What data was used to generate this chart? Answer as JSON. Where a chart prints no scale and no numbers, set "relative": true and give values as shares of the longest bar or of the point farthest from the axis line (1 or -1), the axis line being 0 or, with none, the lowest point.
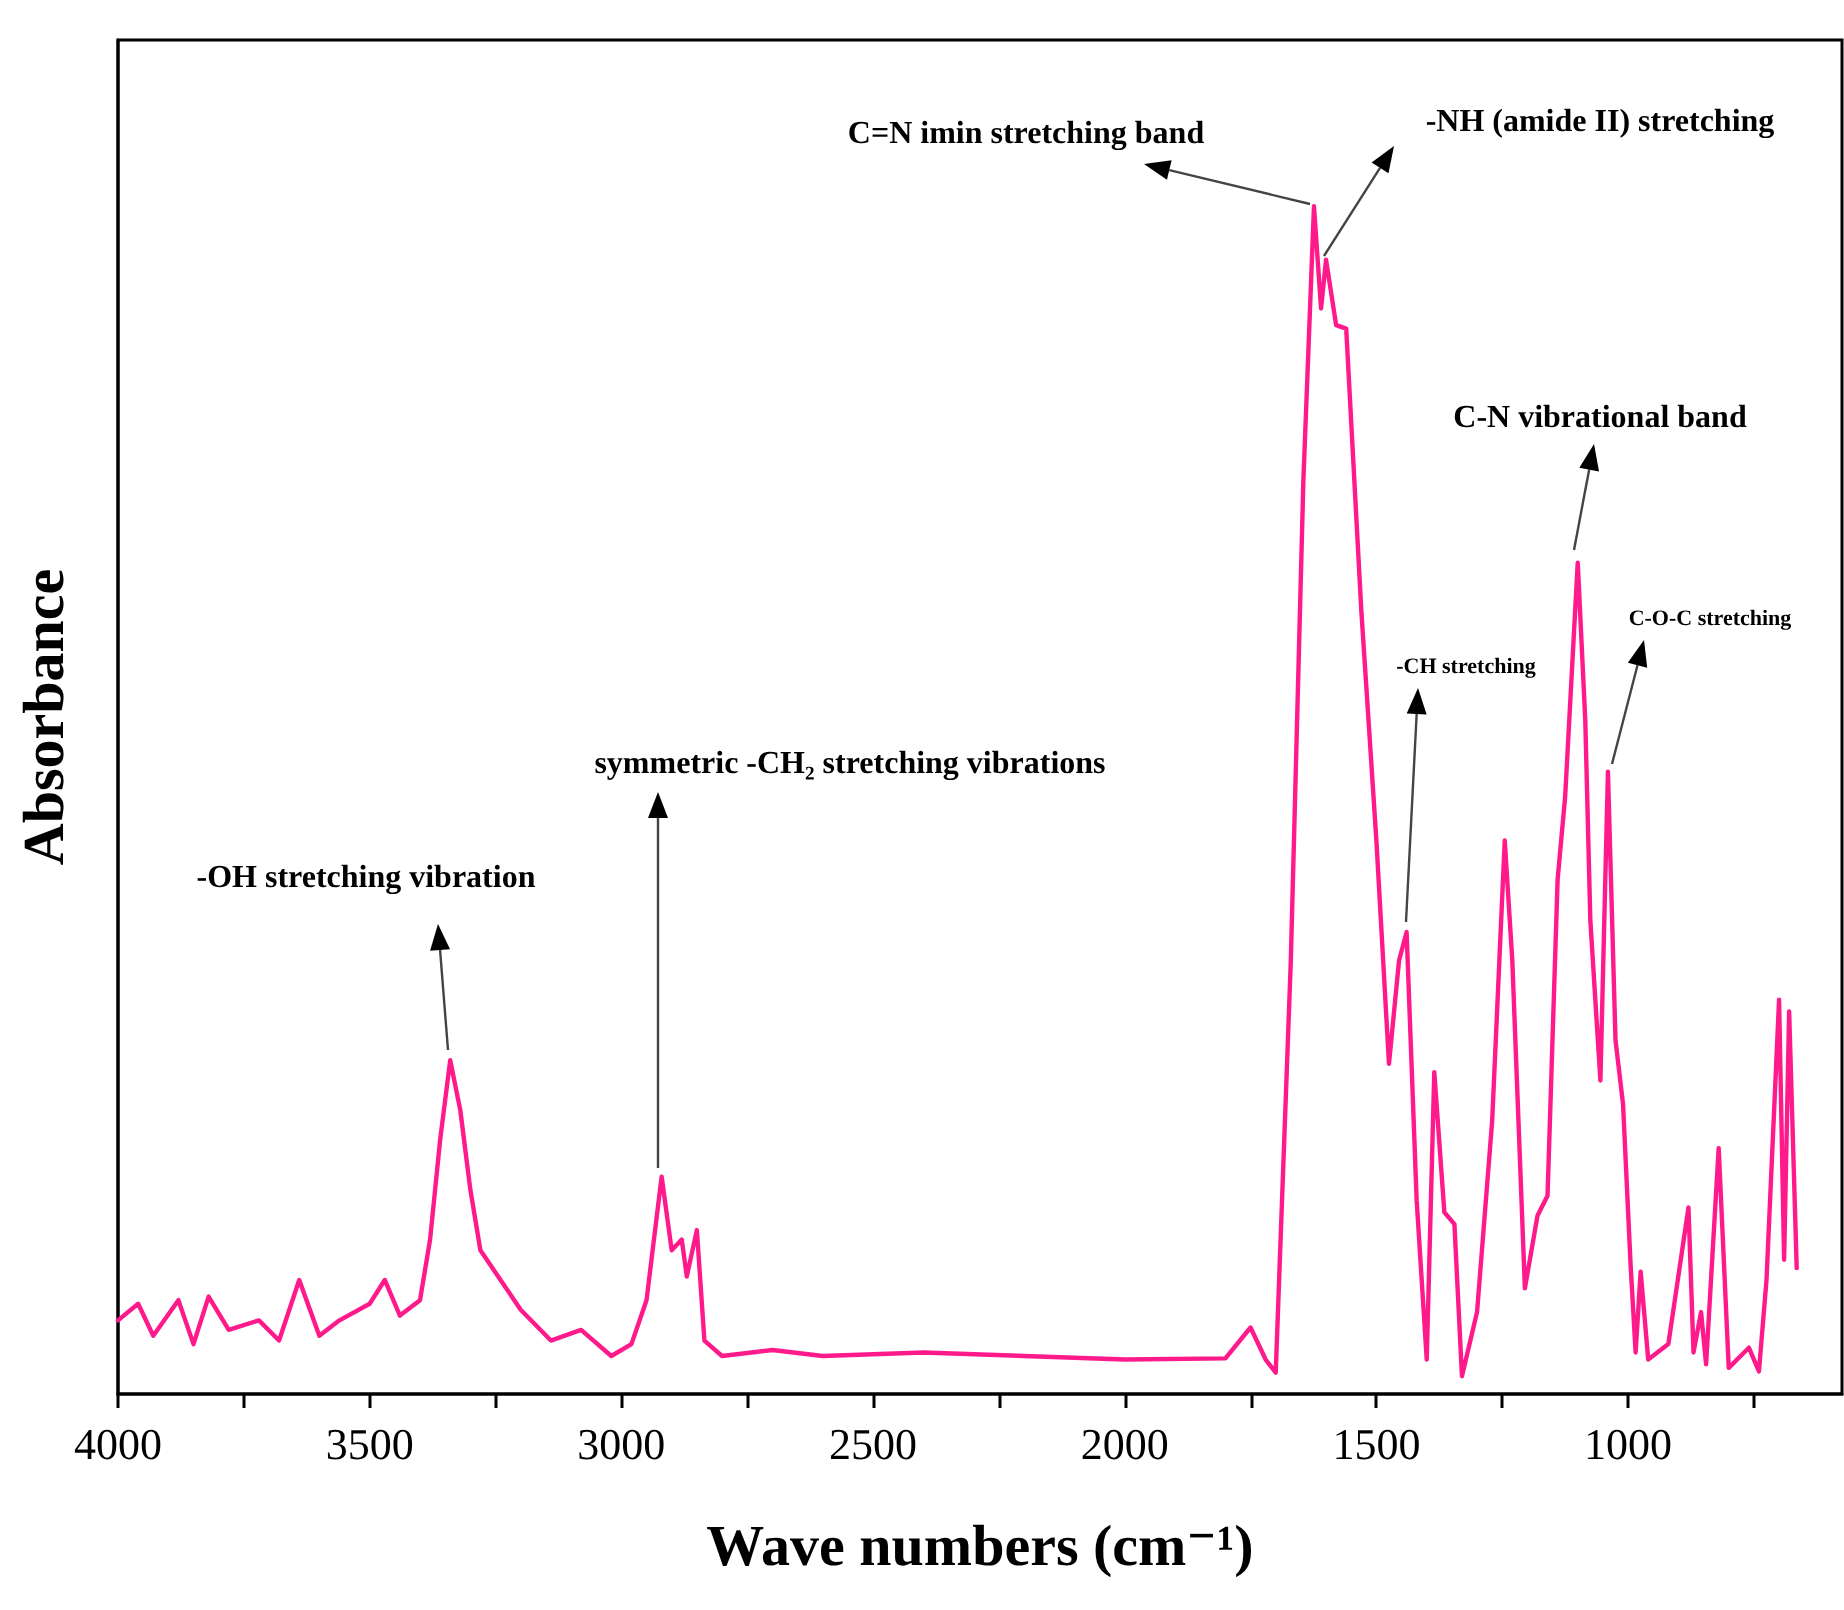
{
  "chart_data": {
    "type": "line",
    "relative": true,
    "xlabel": "Wave numbers (cm⁻¹)",
    "ylabel": "Absorbance",
    "xlim": [
      4000,
      575
    ],
    "xticks": [
      4000,
      {
        "value": 3750,
        "label": null
      },
      3500,
      {
        "value": 3250,
        "label": null
      },
      3000,
      {
        "value": 2750,
        "label": null
      },
      2500,
      {
        "value": 2250,
        "label": null
      },
      2000,
      {
        "value": 1750,
        "label": null
      },
      1500,
      {
        "value": 1250,
        "label": null
      },
      1000,
      {
        "value": 750,
        "label": null
      }
    ],
    "x": [
      4000,
      3960,
      3930,
      3880,
      3850,
      3820,
      3780,
      3720,
      3680,
      3640,
      3600,
      3560,
      3500,
      3470,
      3440,
      3400,
      3380,
      3360,
      3340,
      3320,
      3300,
      3280,
      3240,
      3200,
      3140,
      3080,
      3020,
      2980,
      2950,
      2920,
      2900,
      2880,
      2870,
      2850,
      2835,
      2800,
      2700,
      2600,
      2400,
      2200,
      2000,
      1800,
      1750,
      1720,
      1700,
      1670,
      1645,
      1624,
      1610,
      1600,
      1580,
      1560,
      1530,
      1500,
      1475,
      1455,
      1440,
      1420,
      1400,
      1385,
      1365,
      1345,
      1330,
      1300,
      1270,
      1245,
      1230,
      1205,
      1180,
      1160,
      1140,
      1125,
      1100,
      1085,
      1075,
      1055,
      1040,
      1025,
      1010,
      995,
      985,
      975,
      960,
      920,
      880,
      870,
      855,
      845,
      820,
      800,
      760,
      740,
      725,
      700,
      690,
      680,
      665
    ],
    "series": [
      {
        "color": "#ff1a8c",
        "values": [
          0.062,
          0.076,
          0.049,
          0.079,
          0.042,
          0.082,
          0.054,
          0.062,
          0.045,
          0.096,
          0.049,
          0.062,
          0.076,
          0.096,
          0.066,
          0.079,
          0.13,
          0.214,
          0.281,
          0.239,
          0.172,
          0.121,
          0.096,
          0.071,
          0.045,
          0.054,
          0.032,
          0.042,
          0.079,
          0.183,
          0.121,
          0.13,
          0.099,
          0.138,
          0.045,
          0.032,
          0.037,
          0.032,
          0.035,
          0.032,
          0.029,
          0.03,
          0.056,
          0.029,
          0.018,
          0.365,
          0.77,
          1,
          0.914,
          0.955,
          0.9,
          0.897,
          0.66,
          0.466,
          0.278,
          0.365,
          0.389,
          0.163,
          0.029,
          0.271,
          0.153,
          0.143,
          0.015,
          0.069,
          0.23,
          0.466,
          0.365,
          0.089,
          0.15,
          0.167,
          0.433,
          0.503,
          0.7,
          0.567,
          0.399,
          0.264,
          0.524,
          0.298,
          0.244,
          0.109,
          0.035,
          0.103,
          0.029,
          0.042,
          0.157,
          0.035,
          0.069,
          0.025,
          0.207,
          0.022,
          0.039,
          0.019,
          0.096,
          0.332,
          0.113,
          0.322,
          0.106
        ]
      }
    ],
    "marker": "none",
    "line_style": "solid",
    "grid": false,
    "annotations": [
      "-OH stretching vibration",
      "symmetric -CH₂ stretching vibrations",
      "C=N imin stretching band",
      "-NH (amide II) stretching",
      "-CH stretching",
      "C-N vibrational band",
      "C-O-C stretching"
    ]
  }
}
